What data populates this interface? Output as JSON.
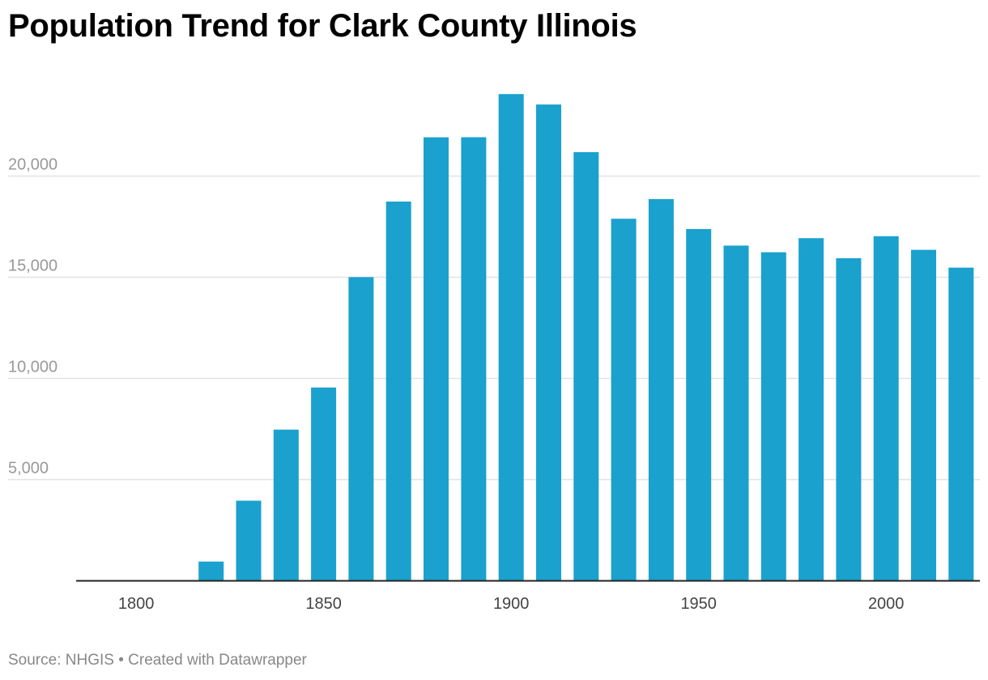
{
  "title": "Population Trend for Clark County Illinois",
  "footer": {
    "source": "Source: NHGIS",
    "separator": " • ",
    "credit": "Created with Datawrapper"
  },
  "colors": {
    "bar": "#1aa1ce",
    "grid": "#e2e2e2",
    "axis": "#222222",
    "tick_label": "#999999",
    "x_tick_label": "#444444"
  },
  "chart_data": {
    "type": "bar",
    "title": "Population Trend for Clark County Illinois",
    "xlabel": "",
    "ylabel": "",
    "categories": [
      1800,
      1810,
      1820,
      1830,
      1840,
      1850,
      1860,
      1870,
      1880,
      1890,
      1900,
      1910,
      1920,
      1930,
      1940,
      1950,
      1960,
      1970,
      1980,
      1990,
      2000,
      2010,
      2020
    ],
    "values": [
      0,
      0,
      931,
      3940,
      7453,
      9532,
      14987,
      18719,
      21894,
      21899,
      24033,
      23517,
      21165,
      17872,
      18842,
      17362,
      16546,
      16216,
      16913,
      15921,
      17008,
      16335,
      15455
    ],
    "xlim": [
      1784,
      2025
    ],
    "ylim": [
      0,
      25000
    ],
    "y_ticks": [
      5000,
      10000,
      15000,
      20000
    ],
    "y_tick_labels": [
      "5,000",
      "10,000",
      "15,000",
      "20,000"
    ],
    "x_ticks": [
      1800,
      1850,
      1900,
      1950,
      2000
    ],
    "x_tick_labels": [
      "1800",
      "1850",
      "1900",
      "1950",
      "2000"
    ],
    "grid": true,
    "legend": "none"
  }
}
